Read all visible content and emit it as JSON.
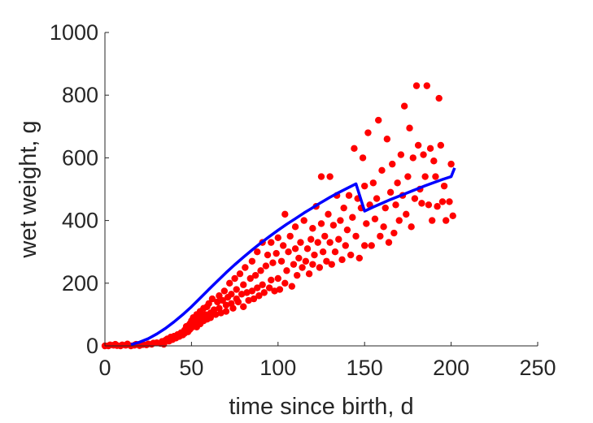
{
  "chart_data": {
    "type": "scatter",
    "title": "",
    "xlabel": "time since birth, d",
    "ylabel": "wet weight, g",
    "xlim": [
      0,
      250
    ],
    "ylim": [
      0,
      1000
    ],
    "xticks": [
      "0",
      "50",
      "100",
      "150",
      "200",
      "250"
    ],
    "yticks": [
      "0",
      "200",
      "400",
      "600",
      "800",
      "1000"
    ],
    "grid": false,
    "legend": "none",
    "series": [
      {
        "kind": "scatter",
        "color": "#ff0000",
        "points": [
          [
            0,
            0
          ],
          [
            2,
            0
          ],
          [
            3,
            3
          ],
          [
            5,
            2
          ],
          [
            6,
            5
          ],
          [
            7,
            1
          ],
          [
            9,
            0
          ],
          [
            10,
            3
          ],
          [
            12,
            2
          ],
          [
            13,
            6
          ],
          [
            15,
            0
          ],
          [
            17,
            2
          ],
          [
            18,
            5
          ],
          [
            20,
            1
          ],
          [
            22,
            4
          ],
          [
            24,
            3
          ],
          [
            25,
            6
          ],
          [
            27,
            5
          ],
          [
            28,
            9
          ],
          [
            30,
            10
          ],
          [
            32,
            8
          ],
          [
            33,
            14
          ],
          [
            34,
            5
          ],
          [
            35,
            18
          ],
          [
            36,
            22
          ],
          [
            37,
            15
          ],
          [
            38,
            28
          ],
          [
            39,
            20
          ],
          [
            40,
            31
          ],
          [
            41,
            25
          ],
          [
            42,
            36
          ],
          [
            43,
            30
          ],
          [
            44,
            42
          ],
          [
            45,
            35
          ],
          [
            46,
            50
          ],
          [
            46,
            40
          ],
          [
            47,
            62
          ],
          [
            48,
            45
          ],
          [
            49,
            70
          ],
          [
            49,
            52
          ],
          [
            50,
            80
          ],
          [
            50,
            58
          ],
          [
            51,
            90
          ],
          [
            51,
            65
          ],
          [
            52,
            75
          ],
          [
            53,
            100
          ],
          [
            53,
            60
          ],
          [
            54,
            85
          ],
          [
            55,
            110
          ],
          [
            55,
            70
          ],
          [
            56,
            95
          ],
          [
            57,
            120
          ],
          [
            57,
            80
          ],
          [
            58,
            100
          ],
          [
            59,
            125
          ],
          [
            59,
            85
          ],
          [
            60,
            135
          ],
          [
            61,
            105
          ],
          [
            61,
            90
          ],
          [
            62,
            150
          ],
          [
            63,
            115
          ],
          [
            64,
            100
          ],
          [
            65,
            140
          ],
          [
            66,
            120
          ],
          [
            66,
            160
          ],
          [
            67,
            105
          ],
          [
            68,
            145
          ],
          [
            69,
            175
          ],
          [
            70,
            130
          ],
          [
            70,
            110
          ],
          [
            71,
            155
          ],
          [
            72,
            200
          ],
          [
            73,
            135
          ],
          [
            73,
            165
          ],
          [
            74,
            120
          ],
          [
            75,
            215
          ],
          [
            76,
            150
          ],
          [
            76,
            180
          ],
          [
            77,
            140
          ],
          [
            78,
            230
          ],
          [
            79,
            165
          ],
          [
            80,
            125
          ],
          [
            80,
            195
          ],
          [
            81,
            250
          ],
          [
            82,
            170
          ],
          [
            83,
            145
          ],
          [
            84,
            215
          ],
          [
            85,
            175
          ],
          [
            85,
            270
          ],
          [
            86,
            150
          ],
          [
            87,
            225
          ],
          [
            88,
            300
          ],
          [
            88,
            185
          ],
          [
            89,
            160
          ],
          [
            90,
            240
          ],
          [
            91,
            330
          ],
          [
            91,
            195
          ],
          [
            92,
            170
          ],
          [
            93,
            255
          ],
          [
            94,
            290
          ],
          [
            95,
            185
          ],
          [
            96,
            210
          ],
          [
            96,
            330
          ],
          [
            97,
            265
          ],
          [
            98,
            175
          ],
          [
            99,
            295
          ],
          [
            100,
            215
          ],
          [
            100,
            345
          ],
          [
            101,
            180
          ],
          [
            102,
            270
          ],
          [
            103,
            320
          ],
          [
            104,
            200
          ],
          [
            104,
            420
          ],
          [
            105,
            240
          ],
          [
            106,
            300
          ],
          [
            107,
            350
          ],
          [
            108,
            190
          ],
          [
            109,
            260
          ],
          [
            110,
            380
          ],
          [
            110,
            310
          ],
          [
            111,
            225
          ],
          [
            112,
            280
          ],
          [
            113,
            330
          ],
          [
            114,
            250
          ],
          [
            115,
            400
          ],
          [
            116,
            270
          ],
          [
            117,
            310
          ],
          [
            118,
            230
          ],
          [
            119,
            340
          ],
          [
            120,
            375
          ],
          [
            120,
            260
          ],
          [
            121,
            290
          ],
          [
            122,
            445
          ],
          [
            123,
            330
          ],
          [
            124,
            250
          ],
          [
            125,
            390
          ],
          [
            125,
            540
          ],
          [
            126,
            300
          ],
          [
            127,
            350
          ],
          [
            128,
            270
          ],
          [
            129,
            420
          ],
          [
            130,
            330
          ],
          [
            130,
            540
          ],
          [
            131,
            260
          ],
          [
            132,
            385
          ],
          [
            133,
            300
          ],
          [
            134,
            480
          ],
          [
            135,
            340
          ],
          [
            136,
            400
          ],
          [
            137,
            275
          ],
          [
            138,
            440
          ],
          [
            139,
            320
          ],
          [
            140,
            370
          ],
          [
            141,
            480
          ],
          [
            142,
            290
          ],
          [
            143,
            410
          ],
          [
            144,
            630
          ],
          [
            145,
            350
          ],
          [
            146,
            470
          ],
          [
            147,
            280
          ],
          [
            148,
            440
          ],
          [
            149,
            600
          ],
          [
            150,
            320
          ],
          [
            150,
            510
          ],
          [
            151,
            390
          ],
          [
            152,
            680
          ],
          [
            153,
            450
          ],
          [
            154,
            320
          ],
          [
            155,
            520
          ],
          [
            156,
            405
          ],
          [
            157,
            470
          ],
          [
            158,
            720
          ],
          [
            159,
            350
          ],
          [
            160,
            560
          ],
          [
            161,
            380
          ],
          [
            162,
            440
          ],
          [
            163,
            660
          ],
          [
            164,
            330
          ],
          [
            165,
            490
          ],
          [
            166,
            580
          ],
          [
            167,
            360
          ],
          [
            168,
            450
          ],
          [
            169,
            520
          ],
          [
            170,
            400
          ],
          [
            171,
            610
          ],
          [
            172,
            480
          ],
          [
            173,
            765
          ],
          [
            174,
            420
          ],
          [
            175,
            540
          ],
          [
            176,
            695
          ],
          [
            177,
            380
          ],
          [
            178,
            600
          ],
          [
            179,
            470
          ],
          [
            180,
            830
          ],
          [
            181,
            640
          ],
          [
            182,
            500
          ],
          [
            183,
            455
          ],
          [
            184,
            610
          ],
          [
            185,
            540
          ],
          [
            186,
            830
          ],
          [
            187,
            450
          ],
          [
            188,
            630
          ],
          [
            189,
            400
          ],
          [
            190,
            590
          ],
          [
            191,
            540
          ],
          [
            192,
            445
          ],
          [
            193,
            790
          ],
          [
            194,
            640
          ],
          [
            195,
            460
          ],
          [
            196,
            510
          ],
          [
            197,
            400
          ],
          [
            199,
            460
          ],
          [
            200,
            580
          ],
          [
            201,
            415
          ]
        ]
      },
      {
        "kind": "line",
        "color": "#0000ff",
        "points": [
          [
            15,
            4
          ],
          [
            20,
            12
          ],
          [
            25,
            23
          ],
          [
            30,
            38
          ],
          [
            35,
            56
          ],
          [
            40,
            77
          ],
          [
            45,
            100
          ],
          [
            50,
            125
          ],
          [
            55,
            152
          ],
          [
            60,
            180
          ],
          [
            65,
            207
          ],
          [
            70,
            234
          ],
          [
            75,
            259
          ],
          [
            80,
            283
          ],
          [
            85,
            306
          ],
          [
            90,
            328
          ],
          [
            95,
            349
          ],
          [
            100,
            369
          ],
          [
            105,
            388
          ],
          [
            110,
            406
          ],
          [
            115,
            424
          ],
          [
            120,
            441
          ],
          [
            125,
            458
          ],
          [
            130,
            474
          ],
          [
            135,
            489
          ],
          [
            140,
            503
          ],
          [
            145,
            517
          ],
          [
            150,
            430
          ],
          [
            155,
            443
          ],
          [
            160,
            455
          ],
          [
            165,
            467
          ],
          [
            170,
            478
          ],
          [
            175,
            489
          ],
          [
            180,
            500
          ],
          [
            185,
            511
          ],
          [
            190,
            521
          ],
          [
            195,
            531
          ],
          [
            200,
            540
          ],
          [
            202,
            568
          ]
        ]
      }
    ]
  }
}
